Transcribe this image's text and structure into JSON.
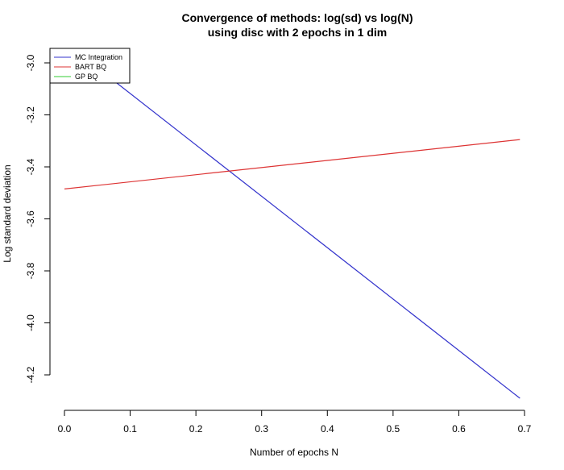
{
  "chart_data": {
    "type": "line",
    "title": "Convergence of methods: log(sd) vs log(N)",
    "subtitle": "using disc with 2 epochs in 1 dim",
    "xlabel": "Number of epochs N",
    "ylabel": "Log standard deviation",
    "xlim": [
      0.0,
      0.7
    ],
    "ylim": [
      -4.25,
      -2.95
    ],
    "x_ticks": [
      "0.0",
      "0.1",
      "0.2",
      "0.3",
      "0.4",
      "0.5",
      "0.6",
      "0.7"
    ],
    "y_ticks": [
      "-3.0",
      "-3.2",
      "-3.4",
      "-3.6",
      "-3.8",
      "-4.0",
      "-4.2"
    ],
    "grid": false,
    "legend_position": "top-left",
    "series": [
      {
        "name": "MC Integration",
        "color": "#3333cc",
        "x": [
          0.0,
          0.693
        ],
        "y": [
          -2.92,
          -4.29
        ]
      },
      {
        "name": "BART BQ",
        "color": "#dd3333",
        "x": [
          0.0,
          0.693
        ],
        "y": [
          -3.485,
          -3.295
        ]
      },
      {
        "name": "GP BQ",
        "color": "#33cc33",
        "x": [],
        "y": []
      }
    ]
  }
}
